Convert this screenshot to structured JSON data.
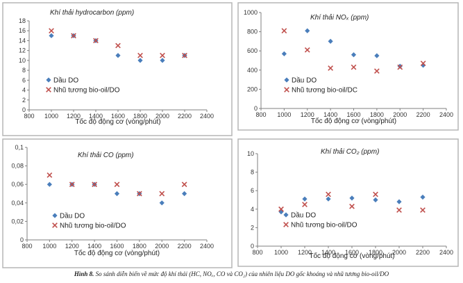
{
  "chart_data": [
    {
      "type": "scatter",
      "title": "Khí thải hydrocarbon (ppm)",
      "xlabel": "Tốc độ động cơ (vòng/phút)",
      "ylabel": "",
      "xlim": [
        800,
        2400
      ],
      "ylim": [
        0,
        18
      ],
      "xticks": [
        800,
        1000,
        1200,
        1400,
        1600,
        1800,
        2000,
        2200,
        2400
      ],
      "xtick_labels": [
        "800",
        "1000",
        "1200",
        "1400",
        "1600",
        "1800",
        "2000",
        "2200",
        "2400"
      ],
      "yticks": [
        0,
        2,
        4,
        6,
        8,
        10,
        12,
        14,
        16,
        18
      ],
      "ytick_labels": [
        "0",
        "2",
        "4",
        "6",
        "8",
        "10",
        "12",
        "14",
        "16",
        "18"
      ],
      "legend_position": "bottom-left",
      "x": [
        1000,
        1200,
        1400,
        1600,
        1800,
        2000,
        2200
      ],
      "series": [
        {
          "name": "Dầu DO",
          "marker": "diamond",
          "color": "#4a7ebb",
          "values": [
            15,
            15,
            14,
            11,
            10,
            10,
            11
          ]
        },
        {
          "name": "Nhũ tương bio-oil/DO",
          "marker": "x",
          "color": "#c0504d",
          "values": [
            16,
            15,
            14,
            13,
            11,
            11,
            11
          ]
        }
      ]
    },
    {
      "type": "scatter",
      "title": "Khí thải NOₓ (ppm)",
      "xlabel": "Tốc độ động cơ (vòng/phút)",
      "ylabel": "",
      "xlim": [
        800,
        2400
      ],
      "ylim": [
        0,
        1000
      ],
      "xticks": [
        800,
        1000,
        1200,
        1400,
        1600,
        1800,
        2000,
        2200,
        2400
      ],
      "xtick_labels": [
        "800",
        "1000",
        "1200",
        "1400",
        "1600",
        "1800",
        "2000",
        "2200",
        "2400"
      ],
      "yticks": [
        0,
        200,
        400,
        600,
        800,
        1000
      ],
      "ytick_labels": [
        "0",
        "200",
        "400",
        "600",
        "800",
        "1000"
      ],
      "legend_position": "bottom-center",
      "x": [
        1000,
        1200,
        1400,
        1600,
        1800,
        2000,
        2200
      ],
      "series": [
        {
          "name": "Dầu DO",
          "marker": "diamond",
          "color": "#4a7ebb",
          "values": [
            570,
            810,
            700,
            560,
            550,
            440,
            450
          ]
        },
        {
          "name": "Nhũ tương bio-oil/DC",
          "marker": "x",
          "color": "#c0504d",
          "values": [
            810,
            610,
            420,
            430,
            390,
            430,
            470
          ]
        }
      ]
    },
    {
      "type": "scatter",
      "title": "Khí thải CO (ppm)",
      "xlabel": "Tốc độ động cơ (vòng/phút)",
      "ylabel": "",
      "xlim": [
        800,
        2400
      ],
      "ylim": [
        0,
        0.1
      ],
      "xticks": [
        800,
        1000,
        1200,
        1400,
        1600,
        1800,
        2000,
        2200,
        2400
      ],
      "xtick_labels": [
        "800",
        "1000",
        "1200",
        "1400",
        "1600",
        "1800",
        "2000",
        "2200",
        "2400"
      ],
      "yticks": [
        0,
        0.02,
        0.04,
        0.06,
        0.08,
        0.1
      ],
      "ytick_labels": [
        "0",
        "0,02",
        "0,04",
        "0,06",
        "0,08",
        "0,1"
      ],
      "legend_position": "bottom-left",
      "x": [
        1000,
        1200,
        1400,
        1600,
        1800,
        2000,
        2200
      ],
      "series": [
        {
          "name": "Dầu DO",
          "marker": "diamond",
          "color": "#4a7ebb",
          "values": [
            0.06,
            0.06,
            0.06,
            0.05,
            0.05,
            0.04,
            0.05
          ]
        },
        {
          "name": "Nhũ tương bio-oil/DO",
          "marker": "x",
          "color": "#c0504d",
          "values": [
            0.07,
            0.06,
            0.06,
            0.06,
            0.05,
            0.05,
            0.06
          ]
        }
      ]
    },
    {
      "type": "scatter",
      "title": "Khí thải CO₂ (ppm)",
      "xlabel": "Tốc độ động cơ (vòng/phút)",
      "ylabel": "",
      "xlim": [
        800,
        2400
      ],
      "ylim": [
        0,
        10
      ],
      "xticks": [
        800,
        1000,
        1200,
        1400,
        1600,
        1800,
        2000,
        2200,
        2400
      ],
      "xtick_labels": [
        "800",
        "1000",
        "1200",
        "1400",
        "1600",
        "1800",
        "2000",
        "2200",
        "2400"
      ],
      "yticks": [
        0,
        2,
        4,
        6,
        8,
        10
      ],
      "ytick_labels": [
        "0",
        "2",
        "4",
        "6",
        "8",
        "10"
      ],
      "legend_position": "bottom-left",
      "x": [
        1000,
        1200,
        1400,
        1600,
        1800,
        2000,
        2200
      ],
      "series": [
        {
          "name": "Dầu DO",
          "marker": "diamond",
          "color": "#4a7ebb",
          "values": [
            3.7,
            5.1,
            5.1,
            5.2,
            5.0,
            4.8,
            5.3
          ]
        },
        {
          "name": "Nhũ tương bio-oil/DO",
          "marker": "x",
          "color": "#c0504d",
          "values": [
            4.0,
            4.5,
            5.6,
            4.3,
            5.6,
            3.9,
            3.9
          ]
        }
      ]
    }
  ],
  "caption": {
    "label": "Hình 8.",
    "text": "So sánh diễn biến về mức độ khí thải (HC, NOₓ, CO và CO₂) của nhiên liệu DO gốc khoáng và nhũ tương bio-oil/DO"
  }
}
